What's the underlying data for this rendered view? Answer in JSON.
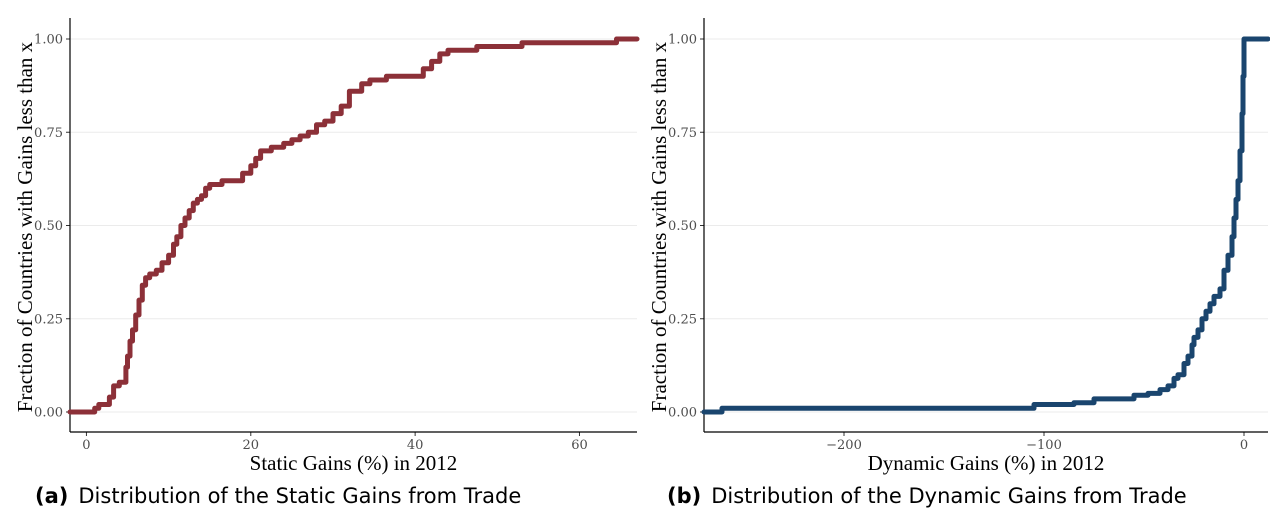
{
  "chart_data": [
    {
      "type": "line",
      "subtype": "step-ecdf",
      "panel": "(a)",
      "caption_label": "(a)",
      "caption_text": "Distribution of the Static Gains from Trade",
      "xlabel": "Static Gains (%) in 2012",
      "ylabel": "Fraction of Countries with Gains less than x",
      "xlim": [
        -2,
        67
      ],
      "ylim": [
        0,
        1
      ],
      "x_ticks": [
        0,
        20,
        40,
        60
      ],
      "x_tick_labels": [
        "0",
        "20",
        "40",
        "60"
      ],
      "y_ticks": [
        0,
        0.25,
        0.5,
        0.75,
        1
      ],
      "y_tick_labels": [
        "0.00",
        "0.25",
        "0.50",
        "0.75",
        "1.00"
      ],
      "grid": "horizontal",
      "color": "#8c3038",
      "x": [
        -2,
        1.0,
        1.5,
        2.8,
        3.3,
        4.0,
        4.8,
        5.0,
        5.3,
        5.6,
        6.0,
        6.4,
        6.8,
        7.2,
        7.7,
        8.5,
        9.2,
        10.0,
        10.6,
        11.0,
        11.5,
        12.0,
        12.5,
        13.0,
        13.5,
        14.0,
        14.5,
        15.0,
        15.5,
        16.0,
        16.5,
        17.5,
        19.0,
        20.0,
        20.6,
        21.2,
        22.0,
        22.5,
        24.0,
        25.0,
        26.0,
        27.0,
        28.0,
        29.0,
        30.0,
        31.0,
        32.0,
        32.5,
        33.5,
        34.5,
        35.5,
        36.5,
        40.0,
        41.0,
        42.0,
        43.0,
        44.0,
        47.5,
        53.0,
        64.5,
        67
      ],
      "y": [
        0,
        0.01,
        0.02,
        0.04,
        0.07,
        0.08,
        0.12,
        0.15,
        0.19,
        0.22,
        0.26,
        0.3,
        0.34,
        0.36,
        0.37,
        0.38,
        0.4,
        0.42,
        0.45,
        0.47,
        0.5,
        0.52,
        0.54,
        0.56,
        0.57,
        0.58,
        0.6,
        0.61,
        0.61,
        0.61,
        0.62,
        0.62,
        0.64,
        0.66,
        0.68,
        0.7,
        0.7,
        0.71,
        0.72,
        0.73,
        0.74,
        0.75,
        0.77,
        0.78,
        0.8,
        0.82,
        0.86,
        0.86,
        0.88,
        0.89,
        0.89,
        0.9,
        0.9,
        0.92,
        0.94,
        0.96,
        0.97,
        0.98,
        0.99,
        1.0,
        1.0
      ]
    },
    {
      "type": "line",
      "subtype": "step-ecdf",
      "panel": "(b)",
      "caption_label": "(b)",
      "caption_text": "Distribution of the Dynamic Gains from Trade",
      "xlabel": "Dynamic Gains (%) in 2012",
      "ylabel": "Fraction of Countries with Gains less than x",
      "xlim": [
        -270,
        12
      ],
      "ylim": [
        0,
        1
      ],
      "x_ticks": [
        -200,
        -100,
        0
      ],
      "x_tick_labels": [
        "−200",
        "−100",
        "0"
      ],
      "y_ticks": [
        0,
        0.25,
        0.5,
        0.75,
        1
      ],
      "y_tick_labels": [
        "0.00",
        "0.25",
        "0.50",
        "0.75",
        "1.00"
      ],
      "grid": "horizontal",
      "color": "#1a456e",
      "x": [
        -270,
        -261,
        -105,
        -85,
        -75,
        -55,
        -48,
        -42,
        -38,
        -35,
        -33,
        -30,
        -28,
        -26,
        -25,
        -23,
        -21,
        -19,
        -17,
        -15,
        -12,
        -10,
        -8,
        -6,
        -5,
        -4,
        -3,
        -2,
        -1,
        -0.5,
        0,
        12
      ],
      "y": [
        0,
        0.01,
        0.02,
        0.025,
        0.035,
        0.045,
        0.05,
        0.06,
        0.07,
        0.09,
        0.1,
        0.13,
        0.15,
        0.18,
        0.2,
        0.22,
        0.25,
        0.27,
        0.29,
        0.31,
        0.33,
        0.38,
        0.42,
        0.47,
        0.52,
        0.57,
        0.62,
        0.7,
        0.8,
        0.9,
        1.0,
        1.0
      ]
    }
  ]
}
